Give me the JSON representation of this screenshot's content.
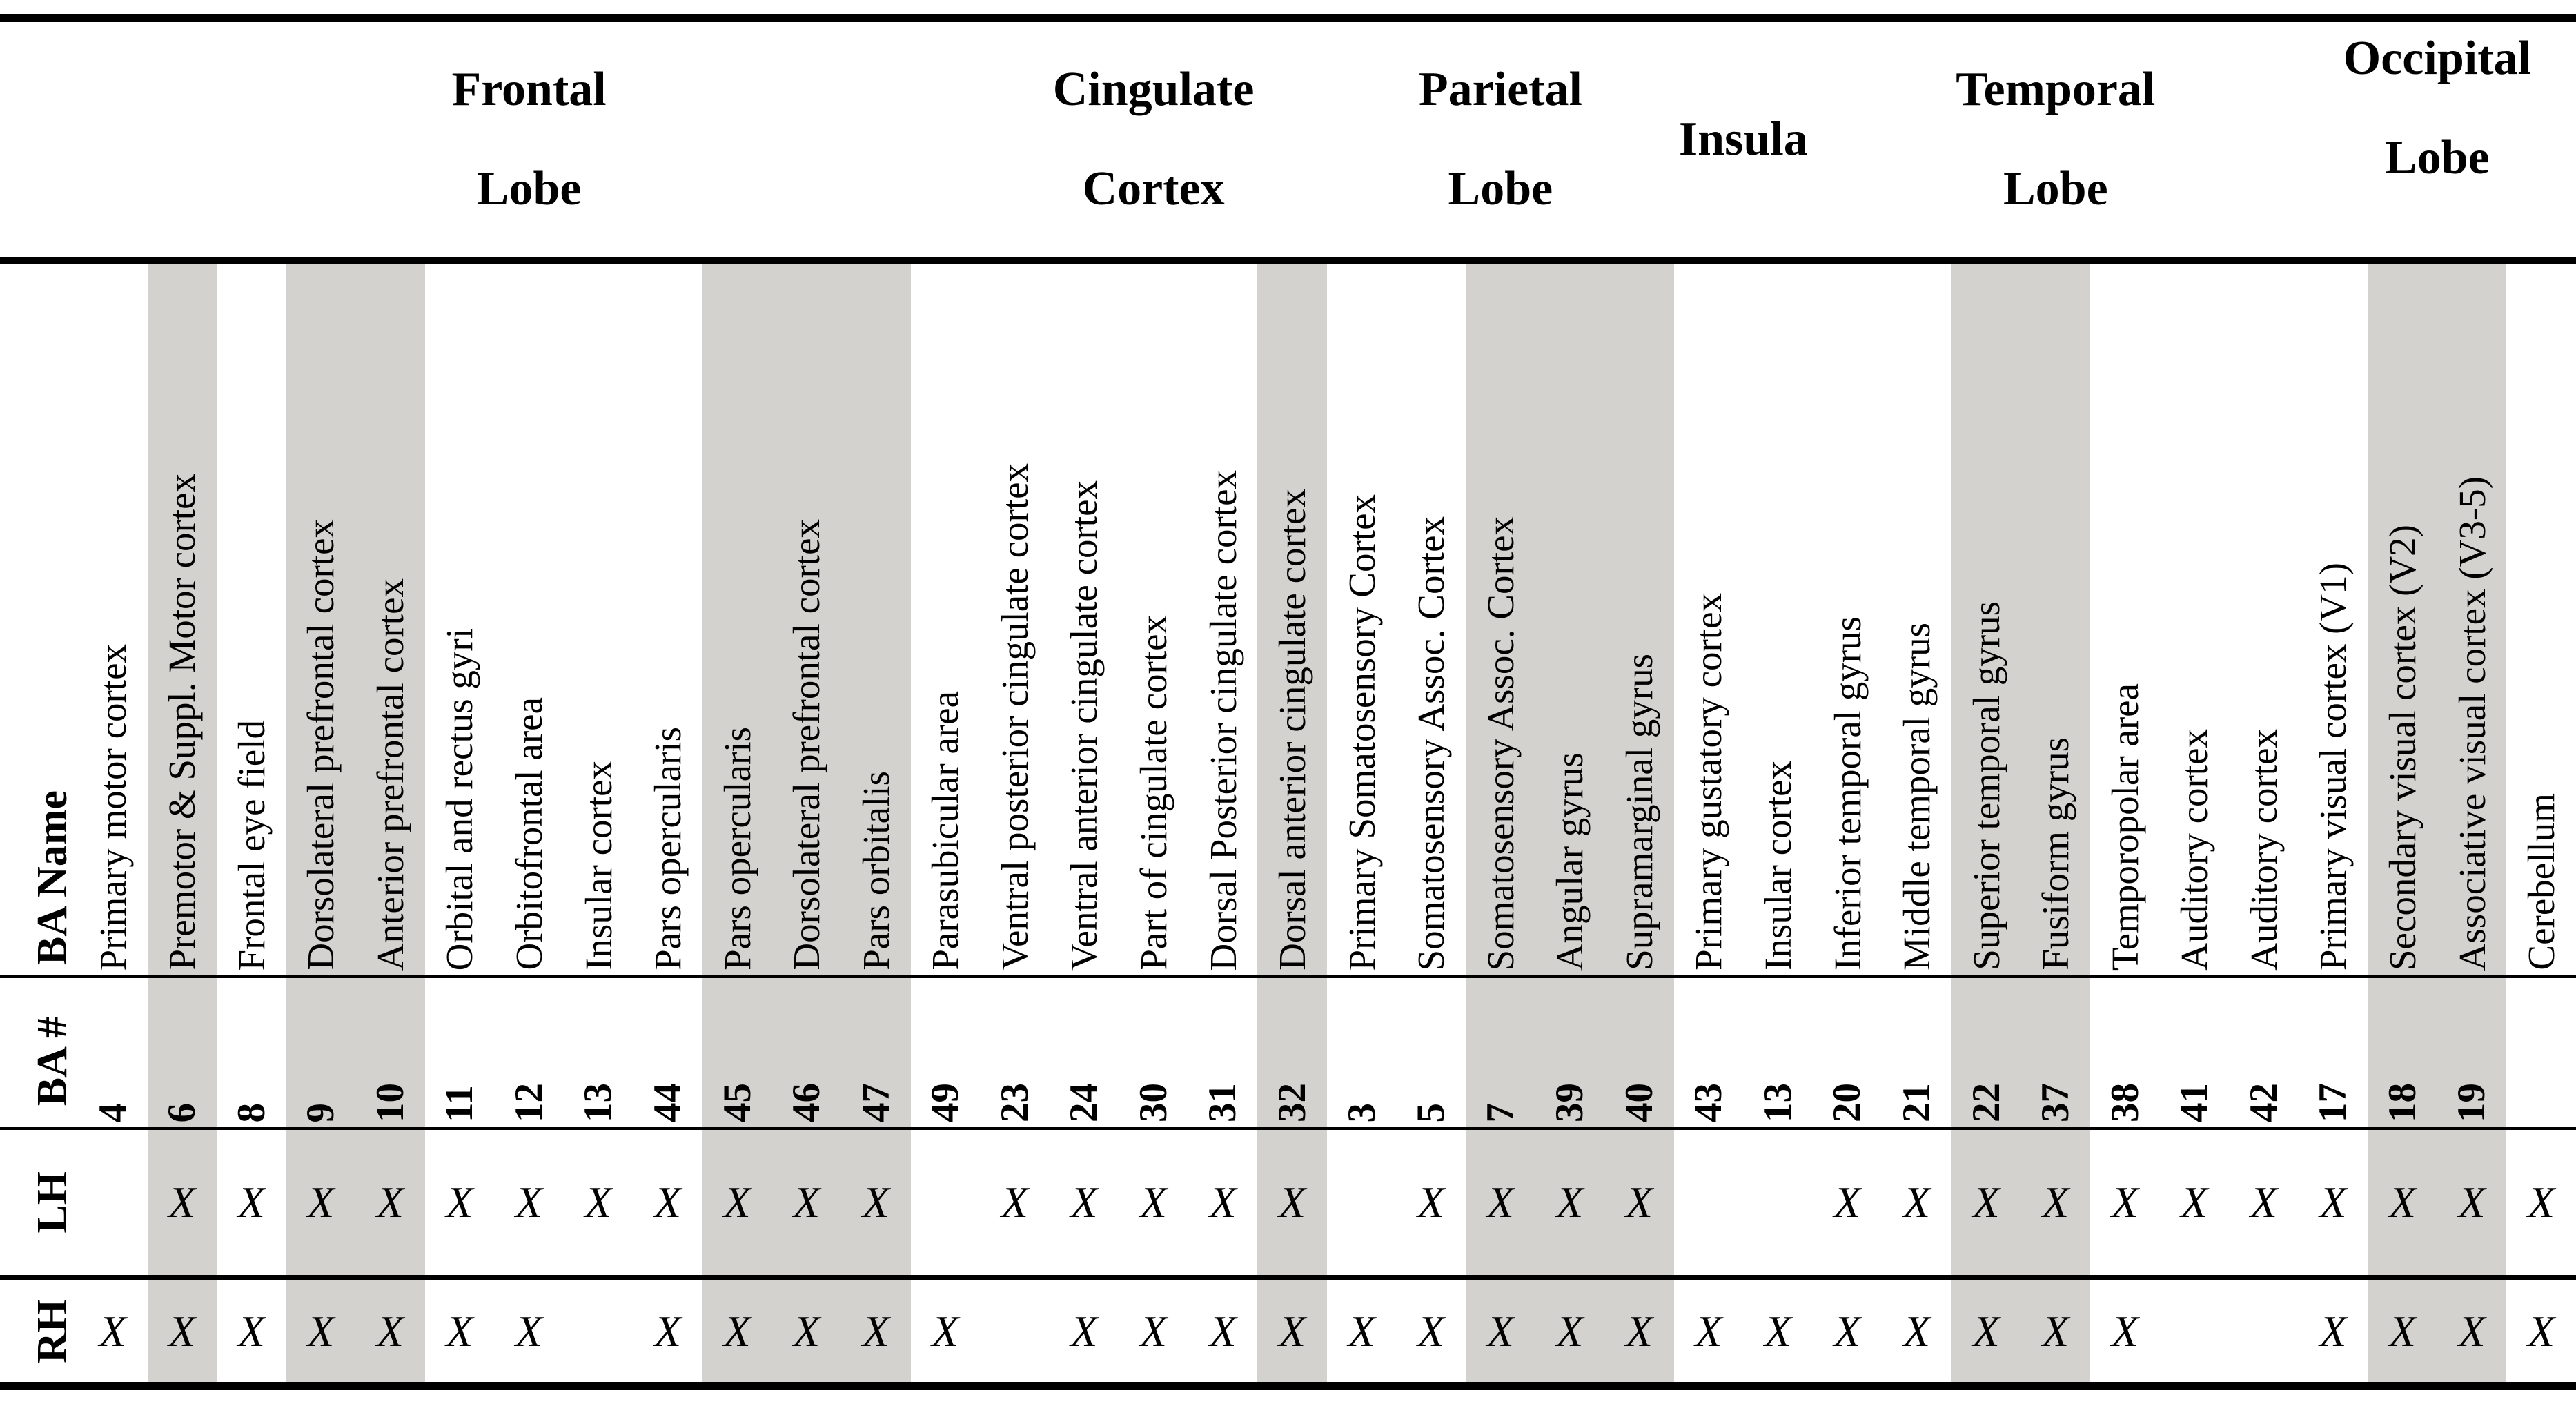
{
  "table": {
    "row_labels": {
      "name": "BA Name",
      "number": "BA #",
      "lh": "LH",
      "rh": "RH"
    },
    "groups": [
      {
        "line1": "Frontal",
        "line2": "Lobe",
        "span": 13,
        "raised": false
      },
      {
        "line1": "Cingulate",
        "line2": "Cortex",
        "span": 5,
        "raised": false
      },
      {
        "line1": "Parietal",
        "line2": "Lobe",
        "span": 5,
        "raised": false
      },
      {
        "line1": "Insula",
        "line2": "",
        "span": 2,
        "raised": false
      },
      {
        "line1": "Temporal",
        "line2": "Lobe",
        "span": 7,
        "raised": false
      },
      {
        "line1": "Occipital",
        "line2": "Lobe",
        "span": 4,
        "raised": true
      }
    ],
    "columns": [
      {
        "name": "Primary motor cortex",
        "ba": "4",
        "shaded": false,
        "lh": "",
        "rh": "X"
      },
      {
        "name": "Premotor & Suppl. Motor cortex",
        "ba": "6",
        "shaded": true,
        "lh": "X",
        "rh": "X"
      },
      {
        "name": "Frontal eye field",
        "ba": "8",
        "shaded": false,
        "lh": "X",
        "rh": "X"
      },
      {
        "name": "Dorsolateral prefrontal cortex",
        "ba": "9",
        "shaded": true,
        "lh": "X",
        "rh": "X"
      },
      {
        "name": "Anterior prefrontal cortex",
        "ba": "10",
        "shaded": true,
        "lh": "X",
        "rh": "X"
      },
      {
        "name": "Orbital and rectus gyri",
        "ba": "11",
        "shaded": false,
        "lh": "X",
        "rh": "X"
      },
      {
        "name": "Orbitofrontal area",
        "ba": "12",
        "shaded": false,
        "lh": "X",
        "rh": "X"
      },
      {
        "name": "Insular cortex",
        "ba": "13",
        "shaded": false,
        "lh": "X",
        "rh": ""
      },
      {
        "name": "Pars opercularis",
        "ba": "44",
        "shaded": false,
        "lh": "X",
        "rh": "X"
      },
      {
        "name": "Pars opercularis",
        "ba": "45",
        "shaded": true,
        "lh": "X",
        "rh": "X"
      },
      {
        "name": "Dorsolateral prefrontal cortex",
        "ba": "46",
        "shaded": true,
        "lh": "X",
        "rh": "X"
      },
      {
        "name": "Pars orbitalis",
        "ba": "47",
        "shaded": true,
        "lh": "X",
        "rh": "X"
      },
      {
        "name": "Parasubicular area",
        "ba": "49",
        "shaded": false,
        "lh": "",
        "rh": "X"
      },
      {
        "name": "Ventral posterior cingulate cortex",
        "ba": "23",
        "shaded": false,
        "lh": "X",
        "rh": ""
      },
      {
        "name": "Ventral anterior cingulate cortex",
        "ba": "24",
        "shaded": false,
        "lh": "X",
        "rh": "X"
      },
      {
        "name": "Part of cingulate cortex",
        "ba": "30",
        "shaded": false,
        "lh": "X",
        "rh": "X"
      },
      {
        "name": "Dorsal Posterior cingulate cortex",
        "ba": "31",
        "shaded": false,
        "lh": "X",
        "rh": "X"
      },
      {
        "name": "Dorsal anterior cingulate cortex",
        "ba": "32",
        "shaded": true,
        "lh": "X",
        "rh": "X"
      },
      {
        "name": "Primary Somatosensory Cortex",
        "ba": "3",
        "shaded": false,
        "lh": "",
        "rh": "X"
      },
      {
        "name": "Somatosensory Assoc. Cortex",
        "ba": "5",
        "shaded": false,
        "lh": "X",
        "rh": "X"
      },
      {
        "name": "Somatosensory Assoc. Cortex",
        "ba": "7",
        "shaded": true,
        "lh": "X",
        "rh": "X"
      },
      {
        "name": "Angular gyrus",
        "ba": "39",
        "shaded": true,
        "lh": "X",
        "rh": "X"
      },
      {
        "name": "Supramarginal gyrus",
        "ba": "40",
        "shaded": true,
        "lh": "X",
        "rh": "X"
      },
      {
        "name": "Primary gustatory cortex",
        "ba": "43",
        "shaded": false,
        "lh": "",
        "rh": "X"
      },
      {
        "name": "Insular cortex",
        "ba": "13",
        "shaded": false,
        "lh": "",
        "rh": "X"
      },
      {
        "name": "Inferior temporal gyrus",
        "ba": "20",
        "shaded": false,
        "lh": "X",
        "rh": "X"
      },
      {
        "name": "Middle temporal gyrus",
        "ba": "21",
        "shaded": false,
        "lh": "X",
        "rh": "X"
      },
      {
        "name": "Superior temporal gyrus",
        "ba": "22",
        "shaded": true,
        "lh": "X",
        "rh": "X"
      },
      {
        "name": "Fusiform gyrus",
        "ba": "37",
        "shaded": true,
        "lh": "X",
        "rh": "X"
      },
      {
        "name": "Temporopolar area",
        "ba": "38",
        "shaded": false,
        "lh": "X",
        "rh": "X"
      },
      {
        "name": "Auditory cortex",
        "ba": "41",
        "shaded": false,
        "lh": "X",
        "rh": ""
      },
      {
        "name": "Auditory cortex",
        "ba": "42",
        "shaded": false,
        "lh": "X",
        "rh": ""
      },
      {
        "name": "Primary visual cortex (V1)",
        "ba": "17",
        "shaded": false,
        "lh": "X",
        "rh": "X"
      },
      {
        "name": "Secondary visual cortex (V2)",
        "ba": "18",
        "shaded": true,
        "lh": "X",
        "rh": "X"
      },
      {
        "name": "Associative visual cortex (V3-5)",
        "ba": "19",
        "shaded": true,
        "lh": "X",
        "rh": "X"
      },
      {
        "name": "Cerebellum",
        "ba": "",
        "shaded": false,
        "lh": "X",
        "rh": "X"
      }
    ]
  },
  "colors": {
    "text": "#000000",
    "rule": "#000000",
    "column_shade": "#d3d2cf",
    "background": "#ffffff"
  }
}
